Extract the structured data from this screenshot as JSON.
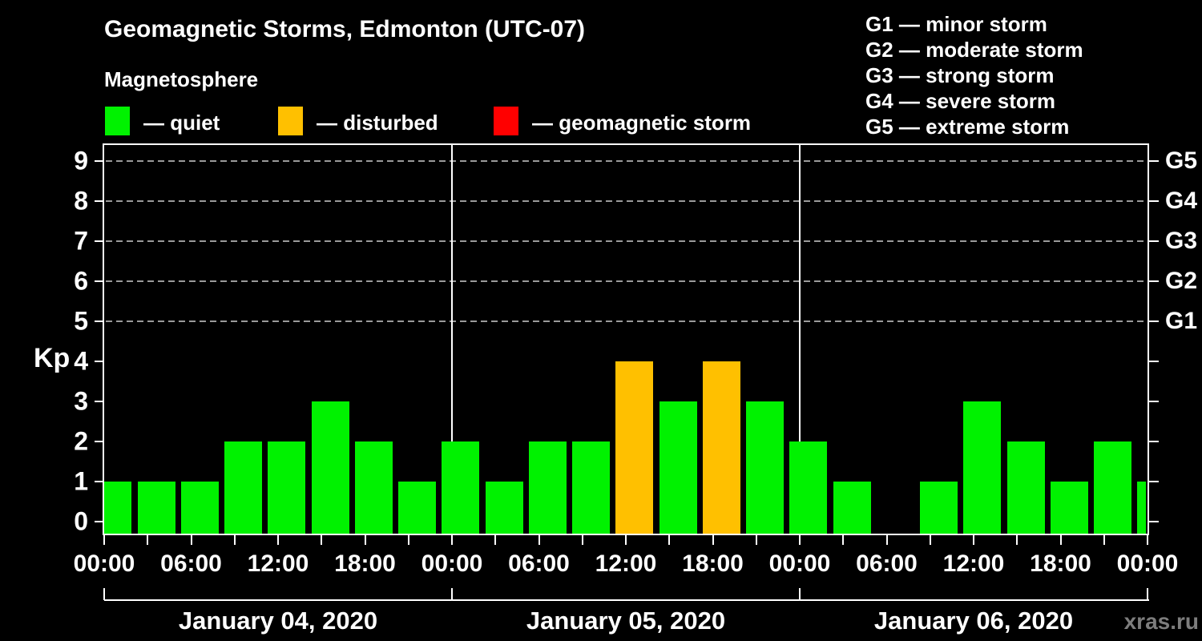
{
  "title": "Geomagnetic Storms, Edmonton (UTC-07)",
  "subtitle": "Magnetosphere",
  "status_legend": {
    "items": [
      {
        "key": "quiet",
        "label": "— quiet",
        "color": "#00f200"
      },
      {
        "key": "disturbed",
        "label": "— disturbed",
        "color": "#ffc000"
      },
      {
        "key": "storm",
        "label": "— geomagnetic storm",
        "color": "#ff0000"
      }
    ]
  },
  "storm_scale_legend": {
    "items": [
      {
        "label": "G1 — minor storm"
      },
      {
        "label": "G2 — moderate storm"
      },
      {
        "label": "G3 — strong storm"
      },
      {
        "label": "G4 — severe storm"
      },
      {
        "label": "G5 — extreme storm"
      }
    ]
  },
  "watermark": "xras.ru",
  "chart_data": {
    "type": "bar",
    "title": "Geomagnetic Storms, Edmonton (UTC-07)",
    "ylabel": "Kp",
    "ylim": [
      0,
      9.6
    ],
    "yticks": [
      0,
      1,
      2,
      3,
      4,
      5,
      6,
      7,
      8,
      9
    ],
    "gridlines_at": [
      5,
      6,
      7,
      8,
      9
    ],
    "grid": "dashed horizontal lines at storm levels only",
    "right_axis_labels": [
      {
        "value": 9,
        "label": "G5"
      },
      {
        "value": 8,
        "label": "G4"
      },
      {
        "value": 7,
        "label": "G3"
      },
      {
        "value": 6,
        "label": "G2"
      },
      {
        "value": 5,
        "label": "G1"
      }
    ],
    "x_tick_interval_hours": 3,
    "x_label_interval_hours": 6,
    "x_tick_labels": [
      "00:00",
      "06:00",
      "12:00",
      "18:00",
      "00:00",
      "06:00",
      "12:00",
      "18:00",
      "00:00",
      "06:00",
      "12:00",
      "18:00",
      "00:00"
    ],
    "days": [
      {
        "date": "January 04, 2020",
        "slots_start": [
          "00:00",
          "03:00",
          "06:00",
          "09:00",
          "12:00",
          "15:00",
          "18:00",
          "21:00"
        ],
        "kp_3h": [
          1,
          1,
          1,
          2,
          2,
          3,
          2,
          1
        ],
        "status": [
          "quiet",
          "quiet",
          "quiet",
          "quiet",
          "quiet",
          "quiet",
          "quiet",
          "quiet"
        ]
      },
      {
        "date": "January 05, 2020",
        "slots_start": [
          "00:00",
          "03:00",
          "06:00",
          "09:00",
          "12:00",
          "15:00",
          "18:00",
          "21:00"
        ],
        "kp_3h": [
          2,
          1,
          2,
          2,
          4,
          3,
          4,
          3
        ],
        "status": [
          "quiet",
          "quiet",
          "quiet",
          "quiet",
          "disturbed",
          "quiet",
          "disturbed",
          "quiet"
        ]
      },
      {
        "date": "January 06, 2020",
        "slots_start": [
          "00:00",
          "03:00",
          "06:00",
          "09:00",
          "12:00",
          "15:00",
          "18:00",
          "21:00"
        ],
        "kp_3h": [
          2,
          1,
          null,
          1,
          3,
          2,
          1,
          2
        ],
        "status": [
          "quiet",
          "quiet",
          null,
          "quiet",
          "quiet",
          "quiet",
          "quiet",
          "quiet"
        ]
      }
    ],
    "next_day_partial_bar": {
      "kp": 1,
      "status": "quiet"
    },
    "colors": {
      "quiet": "#00f200",
      "disturbed": "#ffc000",
      "storm": "#ff0000"
    }
  }
}
